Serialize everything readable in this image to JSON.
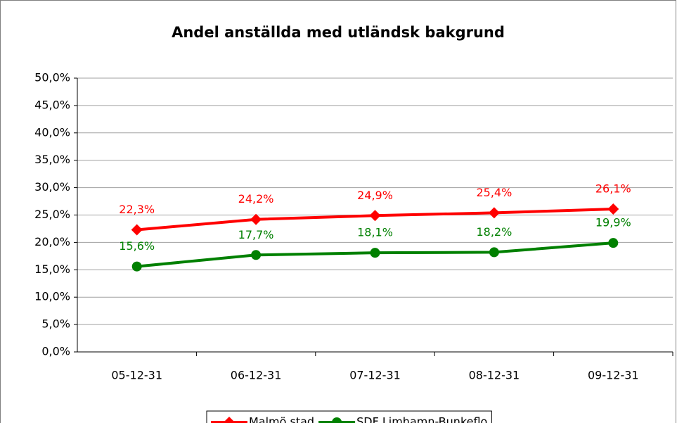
{
  "chart_data": {
    "type": "line",
    "title": "Andel anställda med utländsk bakgrund",
    "categories": [
      "05-12-31",
      "06-12-31",
      "07-12-31",
      "08-12-31",
      "09-12-31"
    ],
    "series": [
      {
        "name": "Malmö stad",
        "color": "#ff0000",
        "marker": "diamond",
        "values": [
          22.3,
          24.2,
          24.9,
          25.4,
          26.1
        ],
        "value_labels": [
          "22,3%",
          "24,2%",
          "24,9%",
          "25,4%",
          "26,1%"
        ]
      },
      {
        "name": "SDF Limhamn-Bunkeflo",
        "color": "#008000",
        "marker": "circle",
        "values": [
          15.6,
          17.7,
          18.1,
          18.2,
          19.9
        ],
        "value_labels": [
          "15,6%",
          "17,7%",
          "18,1%",
          "18,2%",
          "19,9%"
        ]
      }
    ],
    "ylim": [
      0,
      50
    ],
    "yticks": [
      {
        "value": 0,
        "label": "0,0%"
      },
      {
        "value": 5,
        "label": "5,0%"
      },
      {
        "value": 10,
        "label": "10,0%"
      },
      {
        "value": 15,
        "label": "15,0%"
      },
      {
        "value": 20,
        "label": "20,0%"
      },
      {
        "value": 25,
        "label": "25,0%"
      },
      {
        "value": 30,
        "label": "30,0%"
      },
      {
        "value": 35,
        "label": "35,0%"
      },
      {
        "value": 40,
        "label": "40,0%"
      },
      {
        "value": 45,
        "label": "45,0%"
      },
      {
        "value": 50,
        "label": "50,0%"
      }
    ],
    "grid": true,
    "legend": "bottom"
  }
}
